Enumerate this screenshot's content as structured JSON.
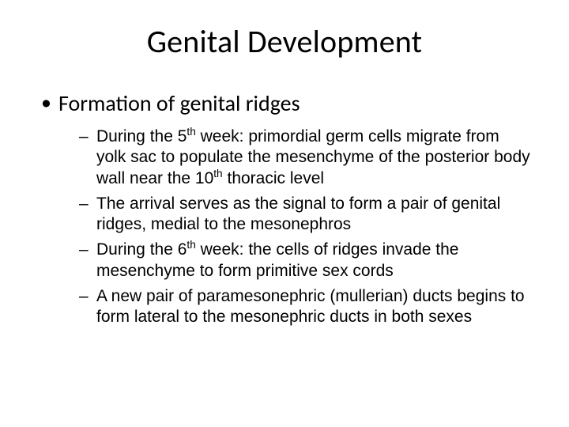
{
  "title": "Genital Development",
  "title_fontsize": 40,
  "title_font": "Calibri",
  "body_font_level1": "Calibri",
  "body_font_level2": "Franklin Gothic Medium",
  "background_color": "#ffffff",
  "text_color": "#000000",
  "level1": {
    "bullet_char": "•",
    "fontsize": 28,
    "items": [
      {
        "text": "Formation of genital ridges"
      }
    ]
  },
  "level2": {
    "bullet_char": "–",
    "fontsize": 21,
    "items": [
      {
        "prefix": "During the 5",
        "sup": "th",
        "suffix": " week: primordial germ cells migrate from yolk sac to populate the mesenchyme of the posterior body wall near the 10",
        "sup2": "th",
        "suffix2": " thoracic level"
      },
      {
        "prefix": "The arrival serves as the signal to form a pair of genital ridges, medial to the mesonephros",
        "sup": "",
        "suffix": "",
        "sup2": "",
        "suffix2": ""
      },
      {
        "prefix": "During the 6",
        "sup": "th",
        "suffix": " week: the cells of ridges invade the mesenchyme to form primitive sex cords",
        "sup2": "",
        "suffix2": ""
      },
      {
        "prefix": "A new pair of paramesonephric (mullerian) ducts begins to form lateral to the mesonephric ducts in both sexes",
        "sup": "",
        "suffix": "",
        "sup2": "",
        "suffix2": ""
      }
    ]
  }
}
